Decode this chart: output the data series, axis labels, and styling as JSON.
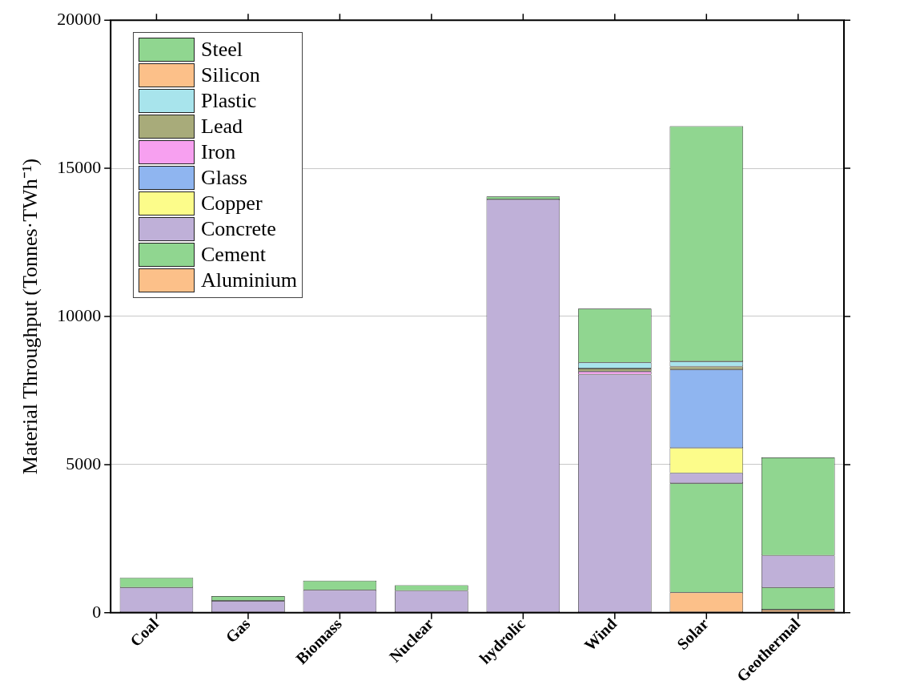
{
  "chart_data": {
    "type": "bar",
    "stacked": true,
    "ylabel": "Material Throughput (Tonnes·TWh⁻¹)",
    "categories": [
      "Coal",
      "Gas",
      "Biomass",
      "Nuclear",
      "hydrolic",
      "Wind",
      "Solar",
      "Geothermal"
    ],
    "ylim": [
      0,
      20000
    ],
    "yticks": [
      0,
      5000,
      10000,
      15000,
      20000
    ],
    "grid": "y",
    "legend": "top left",
    "series": [
      {
        "name": "Aluminium",
        "color": "#fcc089",
        "values": [
          null,
          null,
          null,
          null,
          null,
          null,
          680,
          100
        ]
      },
      {
        "name": "Cement",
        "color": "#90d690",
        "values": [
          null,
          null,
          null,
          null,
          null,
          null,
          3690,
          750
        ]
      },
      {
        "name": "Concrete",
        "color": "#bfb0d8",
        "values": [
          850,
          400,
          760,
          740,
          13950,
          8040,
          340,
          1080
        ]
      },
      {
        "name": "Copper",
        "color": "#fcfc8a",
        "values": [
          null,
          null,
          null,
          null,
          null,
          null,
          850,
          null
        ]
      },
      {
        "name": "Glass",
        "color": "#8fb5f0",
        "values": [
          null,
          null,
          null,
          null,
          null,
          null,
          2650,
          null
        ]
      },
      {
        "name": "Iron",
        "color": "#f7a0f0",
        "values": [
          null,
          null,
          null,
          null,
          null,
          100,
          null,
          null
        ]
      },
      {
        "name": "Lead",
        "color": "#a8ab7a",
        "values": [
          null,
          null,
          null,
          null,
          null,
          100,
          100,
          null
        ]
      },
      {
        "name": "Plastic",
        "color": "#a8e4ec",
        "values": [
          null,
          null,
          null,
          null,
          null,
          200,
          170,
          null
        ]
      },
      {
        "name": "Silicon",
        "color": "#fcc089",
        "values": [
          null,
          null,
          null,
          null,
          null,
          null,
          null,
          null
        ]
      },
      {
        "name": "Steel",
        "color": "#90d690",
        "values": [
          330,
          160,
          320,
          190,
          100,
          1820,
          7940,
          3310
        ]
      }
    ]
  }
}
